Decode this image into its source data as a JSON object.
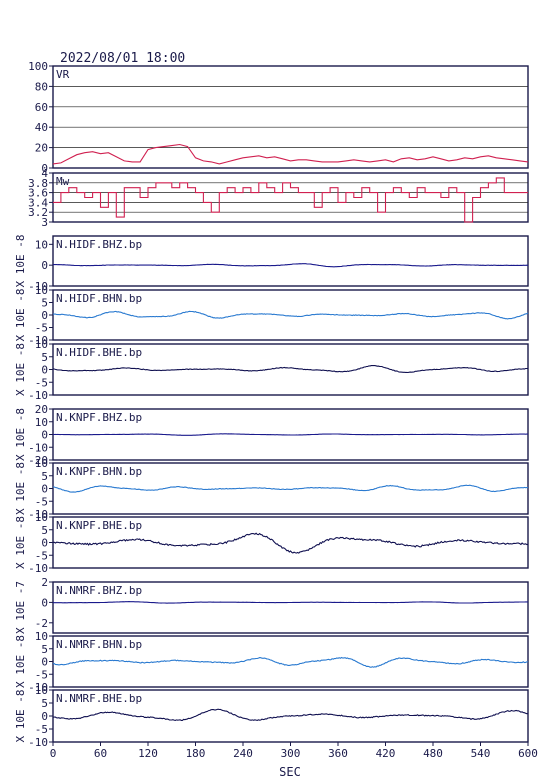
{
  "header": {
    "datetime": "2022/08/01 18:00"
  },
  "xaxis": {
    "label": "SEC",
    "range": [
      0,
      600
    ],
    "ticks": [
      0,
      60,
      120,
      180,
      240,
      300,
      360,
      420,
      480,
      540,
      600
    ]
  },
  "colors": {
    "frame": "#1a1a4a",
    "vr_mw": "#d02050",
    "bhz": "#1a1a8c",
    "bhn": "#2a7ad0",
    "bhe": "#101050"
  },
  "chart_data": [
    {
      "type": "line",
      "id": "vr",
      "label": "VR",
      "ylabel": "",
      "ylim": [
        0,
        100
      ],
      "yticks": [
        0,
        20,
        40,
        60,
        80,
        100
      ],
      "grid": true,
      "series": [
        {
          "x": [
            0,
            10,
            20,
            30,
            40,
            50,
            60,
            70,
            80,
            90,
            100,
            110,
            120,
            130,
            140,
            150,
            160,
            170,
            180,
            190,
            200,
            210,
            220,
            230,
            240,
            250,
            260,
            270,
            280,
            290,
            300,
            310,
            320,
            330,
            340,
            350,
            360,
            370,
            380,
            390,
            400,
            410,
            420,
            430,
            440,
            450,
            460,
            470,
            480,
            490,
            500,
            510,
            520,
            530,
            540,
            550,
            560,
            570,
            580,
            590,
            600
          ],
          "y": [
            4,
            5,
            9,
            13,
            15,
            16,
            14,
            15,
            11,
            7,
            6,
            6,
            18,
            20,
            21,
            22,
            23,
            21,
            10,
            7,
            6,
            4,
            6,
            8,
            10,
            11,
            12,
            10,
            11,
            9,
            7,
            8,
            8,
            7,
            6,
            6,
            6,
            7,
            8,
            7,
            6,
            7,
            8,
            6,
            9,
            10,
            8,
            9,
            11,
            9,
            7,
            8,
            10,
            9,
            11,
            12,
            10,
            9,
            8,
            7,
            6
          ]
        }
      ]
    },
    {
      "type": "line",
      "id": "mw",
      "label": "Mw",
      "ylabel": "",
      "ylim": [
        3.0,
        4.0
      ],
      "yticks": [
        3.0,
        3.2,
        3.4,
        3.6,
        3.8,
        4.0
      ],
      "grid": true,
      "series": [
        {
          "x": [
            0,
            10,
            20,
            30,
            40,
            50,
            60,
            70,
            80,
            90,
            100,
            110,
            120,
            130,
            140,
            150,
            160,
            170,
            180,
            190,
            200,
            210,
            220,
            230,
            240,
            250,
            260,
            270,
            280,
            290,
            300,
            310,
            320,
            330,
            340,
            350,
            360,
            370,
            380,
            390,
            400,
            410,
            420,
            430,
            440,
            450,
            460,
            470,
            480,
            490,
            500,
            510,
            520,
            530,
            540,
            550,
            560,
            570,
            580,
            590,
            600
          ],
          "y": [
            3.4,
            3.6,
            3.7,
            3.6,
            3.5,
            3.6,
            3.3,
            3.6,
            3.1,
            3.7,
            3.7,
            3.5,
            3.7,
            3.8,
            3.8,
            3.7,
            3.8,
            3.7,
            3.6,
            3.4,
            3.2,
            3.6,
            3.7,
            3.6,
            3.7,
            3.6,
            3.8,
            3.7,
            3.6,
            3.8,
            3.7,
            3.6,
            3.6,
            3.3,
            3.6,
            3.7,
            3.4,
            3.6,
            3.5,
            3.7,
            3.6,
            3.2,
            3.6,
            3.7,
            3.6,
            3.5,
            3.7,
            3.6,
            3.6,
            3.5,
            3.7,
            3.6,
            3.0,
            3.5,
            3.7,
            3.8,
            3.9,
            3.6,
            3.6,
            3.6,
            3.6
          ]
        }
      ]
    },
    {
      "type": "line",
      "id": "hidf-bhz",
      "label": "N.HIDF.BHZ.bp",
      "ylabel": "X 10E -8",
      "ylim": [
        -10,
        14
      ],
      "yticks": [
        -10,
        0,
        10
      ],
      "grid": false,
      "amplitude": 0.8,
      "freq": 0.06,
      "color_key": "bhz"
    },
    {
      "type": "line",
      "id": "hidf-bhn",
      "label": "N.HIDF.BHN.bp",
      "ylabel": "X 10E -8",
      "ylim": [
        -10,
        10
      ],
      "yticks": [
        -10,
        -5,
        0,
        5,
        10
      ],
      "grid": false,
      "amplitude": 1.6,
      "freq": 0.07,
      "color_key": "bhn"
    },
    {
      "type": "line",
      "id": "hidf-bhe",
      "label": "N.HIDF.BHE.bp",
      "ylabel": "X 10E -8",
      "ylim": [
        -10,
        10
      ],
      "yticks": [
        -10,
        -5,
        0,
        5,
        10
      ],
      "grid": false,
      "amplitude": 1.5,
      "freq": 0.06,
      "color_key": "bhe"
    },
    {
      "type": "line",
      "id": "knpf-bhz",
      "label": "N.KNPF.BHZ.bp",
      "ylabel": "X 10E -8",
      "ylim": [
        -20,
        20
      ],
      "yticks": [
        -20,
        -10,
        0,
        10,
        20
      ],
      "grid": false,
      "amplitude": 0.7,
      "freq": 0.05,
      "color_key": "bhz"
    },
    {
      "type": "line",
      "id": "knpf-bhn",
      "label": "N.KNPF.BHN.bp",
      "ylabel": "X 10E -8",
      "ylim": [
        -10,
        10
      ],
      "yticks": [
        -10,
        -5,
        0,
        5,
        10
      ],
      "grid": false,
      "amplitude": 1.4,
      "freq": 0.07,
      "color_key": "bhn"
    },
    {
      "type": "line",
      "id": "knpf-bhe",
      "label": "N.KNPF.BHE.bp",
      "ylabel": "X 10E -8",
      "ylim": [
        -10,
        10
      ],
      "yticks": [
        -10,
        -5,
        0,
        5,
        10
      ],
      "grid": false,
      "amplitude": 4.2,
      "freq": 0.045,
      "color_key": "bhe"
    },
    {
      "type": "line",
      "id": "nmrf-bhz",
      "label": "N.NMRF.BHZ.bp",
      "ylabel": "X 10E -7",
      "ylim": [
        -3,
        2
      ],
      "yticks": [
        -2,
        0,
        2
      ],
      "grid": false,
      "amplitude": 0.08,
      "freq": 0.05,
      "color_key": "bhz"
    },
    {
      "type": "line",
      "id": "nmrf-bhn",
      "label": "N.NMRF.BHN.bp",
      "ylabel": "X 10E -8",
      "ylim": [
        -10,
        10
      ],
      "yticks": [
        -10,
        -5,
        0,
        5,
        10
      ],
      "grid": false,
      "amplitude": 2.2,
      "freq": 0.065,
      "color_key": "bhn"
    },
    {
      "type": "line",
      "id": "nmrf-bhe",
      "label": "N.NMRF.BHE.bp",
      "ylabel": "X 10E -8",
      "ylim": [
        -10,
        10
      ],
      "yticks": [
        -10,
        -5,
        0,
        5,
        10
      ],
      "grid": false,
      "amplitude": 2.6,
      "freq": 0.05,
      "color_key": "bhe"
    }
  ]
}
